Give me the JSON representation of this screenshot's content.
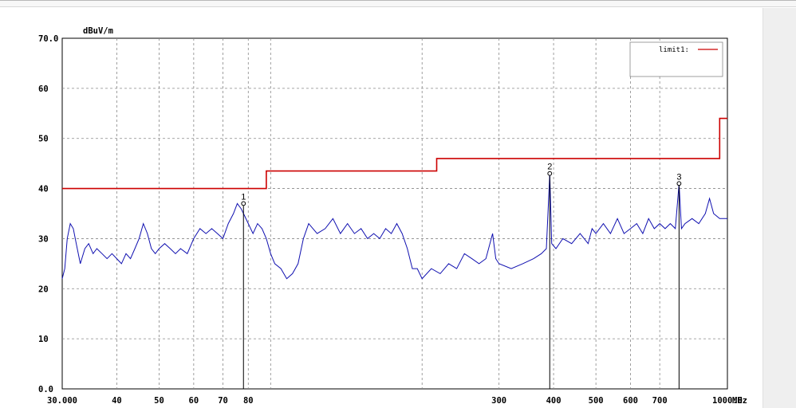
{
  "chart_data": {
    "type": "line",
    "xlabel": "",
    "x_unit": "MHz",
    "ylabel": "",
    "y_unit": "dBuV/m",
    "xscale": "log",
    "xlim": [
      30,
      1000
    ],
    "ylim": [
      0,
      70
    ],
    "grid": true,
    "y_tick_labels": [
      {
        "value": 0,
        "label": "0.0"
      },
      {
        "value": 10,
        "label": "10"
      },
      {
        "value": 20,
        "label": "20"
      },
      {
        "value": 30,
        "label": "30"
      },
      {
        "value": 40,
        "label": "40"
      },
      {
        "value": 50,
        "label": "50"
      },
      {
        "value": 60,
        "label": "60"
      },
      {
        "value": 70,
        "label": "70.0"
      }
    ],
    "x_tick_labels": [
      {
        "value": 30,
        "label": "30.000"
      },
      {
        "value": 40,
        "label": "40"
      },
      {
        "value": 50,
        "label": "50"
      },
      {
        "value": 60,
        "label": "60"
      },
      {
        "value": 70,
        "label": "70"
      },
      {
        "value": 80,
        "label": "80"
      },
      {
        "value": 300,
        "label": "300"
      },
      {
        "value": 400,
        "label": "400"
      },
      {
        "value": 500,
        "label": "500"
      },
      {
        "value": 600,
        "label": "600"
      },
      {
        "value": 700,
        "label": "700"
      },
      {
        "value": 1000,
        "label": "1000.0"
      }
    ],
    "x_gridlines": [
      30,
      40,
      50,
      60,
      70,
      80,
      90,
      200,
      300,
      400,
      500,
      600,
      700,
      1000
    ],
    "legend": {
      "placement": "top-right",
      "entries": [
        {
          "label": "limit1:",
          "color": "#cc0000"
        }
      ]
    },
    "limit_line": {
      "name": "limit1",
      "color": "#cc0000",
      "points": [
        [
          30,
          40
        ],
        [
          88,
          40
        ],
        [
          88,
          43.5
        ],
        [
          216,
          43.5
        ],
        [
          216,
          46
        ],
        [
          960,
          46
        ],
        [
          960,
          54
        ],
        [
          1000,
          54
        ]
      ]
    },
    "measurement": {
      "color": "#1010b0",
      "points": [
        [
          30,
          22
        ],
        [
          30.4,
          24
        ],
        [
          30.8,
          30
        ],
        [
          31.3,
          33
        ],
        [
          31.8,
          32
        ],
        [
          32.3,
          29
        ],
        [
          33,
          25
        ],
        [
          33.8,
          28
        ],
        [
          34.5,
          29
        ],
        [
          35.3,
          27
        ],
        [
          36,
          28
        ],
        [
          37,
          27
        ],
        [
          38,
          26
        ],
        [
          39,
          27
        ],
        [
          40,
          26
        ],
        [
          41,
          25
        ],
        [
          42,
          27
        ],
        [
          43,
          26
        ],
        [
          44,
          28
        ],
        [
          45,
          30
        ],
        [
          46,
          33
        ],
        [
          47,
          31
        ],
        [
          48,
          28
        ],
        [
          49,
          27
        ],
        [
          50,
          28
        ],
        [
          51.5,
          29
        ],
        [
          53,
          28
        ],
        [
          54.5,
          27
        ],
        [
          56,
          28
        ],
        [
          58,
          27
        ],
        [
          60,
          30
        ],
        [
          62,
          32
        ],
        [
          64,
          31
        ],
        [
          66,
          32
        ],
        [
          68,
          31
        ],
        [
          70,
          30
        ],
        [
          72,
          33
        ],
        [
          74,
          35
        ],
        [
          75.5,
          37
        ],
        [
          77,
          36
        ],
        [
          78,
          35
        ],
        [
          80,
          33
        ],
        [
          82,
          31
        ],
        [
          84,
          33
        ],
        [
          86,
          32
        ],
        [
          88,
          30
        ],
        [
          90,
          27
        ],
        [
          92,
          25
        ],
        [
          95,
          24
        ],
        [
          98,
          22
        ],
        [
          101,
          23
        ],
        [
          104,
          25
        ],
        [
          107,
          30
        ],
        [
          110,
          33
        ],
        [
          115,
          31
        ],
        [
          120,
          32
        ],
        [
          125,
          34
        ],
        [
          130,
          31
        ],
        [
          135,
          33
        ],
        [
          140,
          31
        ],
        [
          145,
          32
        ],
        [
          150,
          30
        ],
        [
          155,
          31
        ],
        [
          160,
          30
        ],
        [
          165,
          32
        ],
        [
          170,
          31
        ],
        [
          175,
          33
        ],
        [
          180,
          31
        ],
        [
          185,
          28
        ],
        [
          190,
          24
        ],
        [
          195,
          24
        ],
        [
          200,
          22
        ],
        [
          210,
          24
        ],
        [
          220,
          23
        ],
        [
          230,
          25
        ],
        [
          240,
          24
        ],
        [
          250,
          27
        ],
        [
          260,
          26
        ],
        [
          270,
          25
        ],
        [
          280,
          26
        ],
        [
          290,
          31
        ],
        [
          295,
          26
        ],
        [
          300,
          25
        ],
        [
          320,
          24
        ],
        [
          340,
          25
        ],
        [
          360,
          26
        ],
        [
          375,
          27
        ],
        [
          385,
          28
        ],
        [
          392,
          43
        ],
        [
          396,
          29
        ],
        [
          405,
          28
        ],
        [
          420,
          30
        ],
        [
          440,
          29
        ],
        [
          460,
          31
        ],
        [
          480,
          29
        ],
        [
          490,
          32
        ],
        [
          500,
          31
        ],
        [
          520,
          33
        ],
        [
          540,
          31
        ],
        [
          560,
          34
        ],
        [
          580,
          31
        ],
        [
          600,
          32
        ],
        [
          620,
          33
        ],
        [
          640,
          31
        ],
        [
          660,
          34
        ],
        [
          680,
          32
        ],
        [
          700,
          33
        ],
        [
          720,
          32
        ],
        [
          740,
          33
        ],
        [
          760,
          32
        ],
        [
          775,
          41
        ],
        [
          785,
          32
        ],
        [
          800,
          33
        ],
        [
          830,
          34
        ],
        [
          860,
          33
        ],
        [
          890,
          35
        ],
        [
          910,
          38
        ],
        [
          930,
          35
        ],
        [
          960,
          34
        ],
        [
          1000,
          34
        ]
      ]
    },
    "markers": [
      {
        "label": "1",
        "x": 78,
        "y": 37
      },
      {
        "label": "2",
        "x": 392,
        "y": 43
      },
      {
        "label": "3",
        "x": 775,
        "y": 41
      }
    ]
  }
}
